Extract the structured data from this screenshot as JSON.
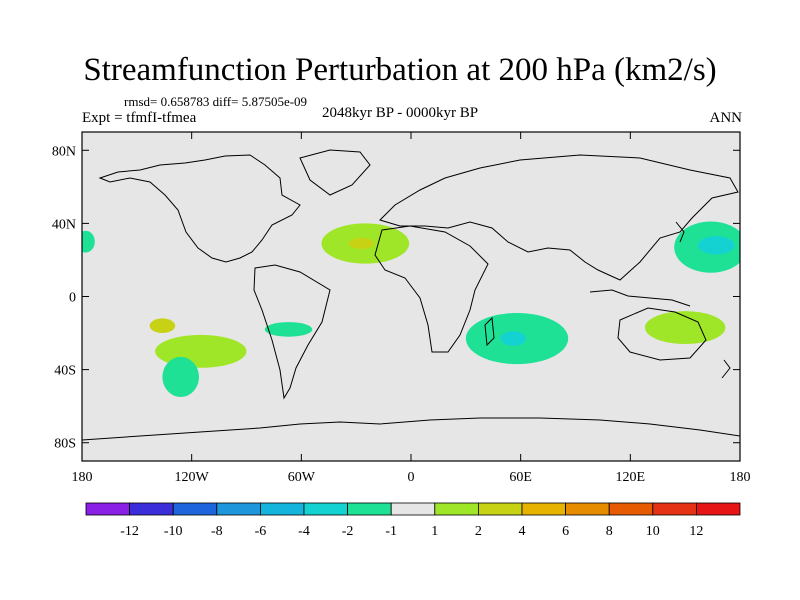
{
  "title": "Streamfunction Perturbation at 200 hPa (km2/s)",
  "stats_line": "rmsd= 0.658783 diff= 5.87505e-09",
  "experiment": "Expt = tfmfI-tfmea",
  "period": "2048kyr BP - 0000kyr BP",
  "season": "ANN",
  "chart_data": {
    "type": "heatmap",
    "projection": "cylindrical-equidistant",
    "lon_range": [
      -180,
      180
    ],
    "lat_range": [
      -90,
      90
    ],
    "x_ticks": [
      {
        "value": -180,
        "label": "180"
      },
      {
        "value": -120,
        "label": "120W"
      },
      {
        "value": -60,
        "label": "60W"
      },
      {
        "value": 0,
        "label": "0"
      },
      {
        "value": 60,
        "label": "60E"
      },
      {
        "value": 120,
        "label": "120E"
      },
      {
        "value": 180,
        "label": "180"
      }
    ],
    "y_ticks": [
      {
        "value": 80,
        "label": "80N"
      },
      {
        "value": 40,
        "label": "40N"
      },
      {
        "value": 0,
        "label": "0"
      },
      {
        "value": -40,
        "label": "40S"
      },
      {
        "value": -80,
        "label": "80S"
      }
    ],
    "colorbar": {
      "colors": [
        "#8a1fe6",
        "#3c2dda",
        "#1e64dd",
        "#1e96dc",
        "#14b4dc",
        "#14d2d2",
        "#1ee196",
        "#e6e6e6",
        "#a0e628",
        "#c8d214",
        "#e6b400",
        "#e68c00",
        "#e65a00",
        "#e63214",
        "#e61414"
      ],
      "labels": [
        "-12",
        "-10",
        "-8",
        "-6",
        "-4",
        "-2",
        "-1",
        "1",
        "2",
        "4",
        "6",
        "8",
        "10",
        "12"
      ]
    },
    "anomaly_regions": [
      {
        "name": "north-atlantic-positive",
        "lon": -25,
        "lat": 29,
        "rx": 24,
        "ry": 11,
        "level_color": "#a0e628"
      },
      {
        "name": "north-atlantic-positive-core",
        "lon": -27,
        "lat": 29,
        "rx": 7,
        "ry": 3,
        "level_color": "#c8d214"
      },
      {
        "name": "south-pacific-positive-band",
        "lon": -115,
        "lat": -30,
        "rx": 25,
        "ry": 9,
        "level_color": "#a0e628"
      },
      {
        "name": "south-pacific-positive-core",
        "lon": -136,
        "lat": -16,
        "rx": 7,
        "ry": 4,
        "level_color": "#c8d214"
      },
      {
        "name": "south-pacific-negative",
        "lon": -126,
        "lat": -44,
        "rx": 10,
        "ry": 11,
        "level_color": "#1ee196"
      },
      {
        "name": "south-atlantic-negative",
        "lon": -67,
        "lat": -18,
        "rx": 13,
        "ry": 4,
        "level_color": "#1ee196"
      },
      {
        "name": "indian-ocean-negative",
        "lon": 58,
        "lat": -23,
        "rx": 28,
        "ry": 14,
        "level_color": "#1ee196"
      },
      {
        "name": "indian-ocean-negative-core",
        "lon": 56,
        "lat": -23,
        "rx": 7,
        "ry": 4,
        "level_color": "#14d2d2"
      },
      {
        "name": "north-pacific-negative",
        "lon": 164,
        "lat": 27,
        "rx": 20,
        "ry": 14,
        "level_color": "#1ee196"
      },
      {
        "name": "north-pacific-negative-core",
        "lon": 167,
        "lat": 28,
        "rx": 10,
        "ry": 5,
        "level_color": "#14d2d2"
      },
      {
        "name": "australia-positive",
        "lon": 150,
        "lat": -17,
        "rx": 22,
        "ry": 9,
        "level_color": "#a0e628"
      },
      {
        "name": "east-pacific-edge-negative",
        "lon": -178,
        "lat": 30,
        "rx": 5,
        "ry": 6,
        "level_color": "#1ee196"
      }
    ]
  }
}
